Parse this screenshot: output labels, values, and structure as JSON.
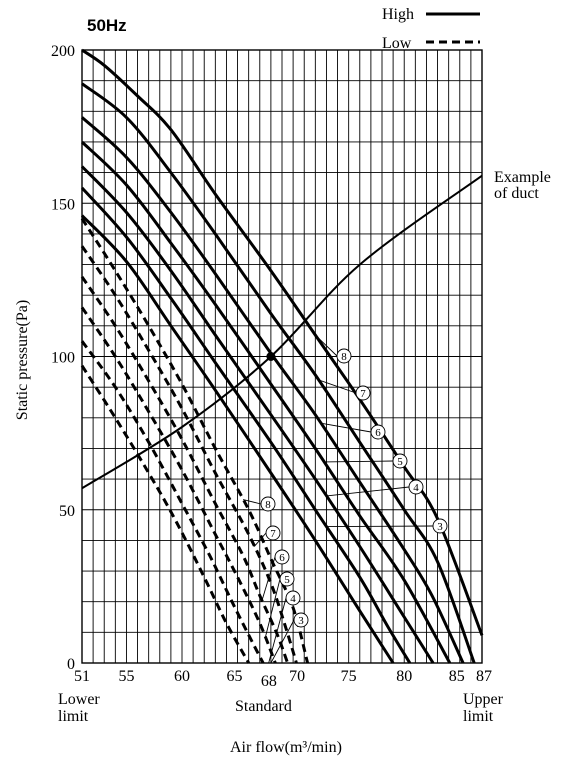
{
  "chart_data": {
    "type": "line",
    "frequency_label": "50Hz",
    "legend": {
      "high": "High",
      "low": "Low"
    },
    "xlabel": "Air flow(m³/min)",
    "ylabel": "Static pressure(Pa)",
    "xlim": [
      51,
      87
    ],
    "ylim": [
      0,
      200
    ],
    "x_ticks": [
      "51",
      "55",
      "60",
      "65",
      "68",
      "70",
      "75",
      "80",
      "85",
      "87"
    ],
    "y_ticks": [
      "0",
      "50",
      "100",
      "150",
      "200"
    ],
    "x_annotations": {
      "lower": [
        "Lower",
        "limit"
      ],
      "standard": "Standard",
      "upper": [
        "Upper",
        "limit"
      ]
    },
    "duct": {
      "label": [
        "Example",
        "of duct"
      ],
      "points": [
        [
          51,
          57
        ],
        [
          60,
          77
        ],
        [
          68,
          100
        ],
        [
          76,
          130
        ],
        [
          87,
          159
        ]
      ]
    },
    "operating_point": [
      68,
      100
    ],
    "series": [
      {
        "group": "High",
        "tap": "8",
        "points": [
          [
            51,
            200
          ],
          [
            53,
            195
          ],
          [
            56,
            185
          ],
          [
            59,
            174
          ],
          [
            63,
            153
          ],
          [
            68,
            128
          ],
          [
            72,
            107
          ],
          [
            76,
            86
          ],
          [
            80,
            64
          ],
          [
            83,
            47
          ],
          [
            87,
            9
          ]
        ]
      },
      {
        "group": "High",
        "tap": "7",
        "points": [
          [
            51,
            189
          ],
          [
            55,
            178
          ],
          [
            59,
            160
          ],
          [
            63,
            140
          ],
          [
            68,
            114
          ],
          [
            72,
            94
          ],
          [
            76,
            72
          ],
          [
            80,
            50
          ],
          [
            83,
            33
          ],
          [
            86.3,
            0
          ]
        ]
      },
      {
        "group": "High",
        "tap": "6",
        "points": [
          [
            51,
            178
          ],
          [
            55,
            165
          ],
          [
            59,
            147
          ],
          [
            63,
            127
          ],
          [
            68,
            101
          ],
          [
            72,
            81
          ],
          [
            76,
            59
          ],
          [
            80,
            37
          ],
          [
            82.5,
            22
          ],
          [
            85.3,
            0
          ]
        ]
      },
      {
        "group": "High",
        "tap": "5",
        "points": [
          [
            51,
            170
          ],
          [
            55,
            156
          ],
          [
            59,
            137
          ],
          [
            63,
            117
          ],
          [
            68,
            91
          ],
          [
            72,
            70
          ],
          [
            76,
            48
          ],
          [
            80,
            27
          ],
          [
            84.1,
            0
          ]
        ]
      },
      {
        "group": "High",
        "tap": "4",
        "points": [
          [
            51,
            162
          ],
          [
            55,
            147
          ],
          [
            59,
            128
          ],
          [
            63,
            107
          ],
          [
            68,
            81
          ],
          [
            72,
            60
          ],
          [
            76,
            38
          ],
          [
            80,
            15
          ],
          [
            82.6,
            0
          ]
        ]
      },
      {
        "group": "High",
        "tap": "3",
        "points": [
          [
            51,
            155
          ],
          [
            55,
            139
          ],
          [
            59,
            119
          ],
          [
            63,
            98
          ],
          [
            68,
            72
          ],
          [
            72,
            50
          ],
          [
            76,
            28
          ],
          [
            78.5,
            12
          ],
          [
            80.5,
            0
          ]
        ]
      },
      {
        "group": "High",
        "tap": "unlabeled",
        "points": [
          [
            51,
            146
          ],
          [
            55,
            131
          ],
          [
            59,
            110
          ],
          [
            63,
            89
          ],
          [
            68,
            62
          ],
          [
            72,
            40
          ],
          [
            76,
            17
          ],
          [
            79,
            0
          ]
        ]
      },
      {
        "group": "Low",
        "tap": "8",
        "points": [
          [
            51,
            145
          ],
          [
            54,
            128
          ],
          [
            57,
            110
          ],
          [
            60,
            91
          ],
          [
            63,
            70
          ],
          [
            66,
            50
          ],
          [
            68,
            34
          ],
          [
            70,
            18
          ],
          [
            71.3,
            0
          ]
        ]
      },
      {
        "group": "Low",
        "tap": "7",
        "points": [
          [
            51,
            136
          ],
          [
            54,
            120
          ],
          [
            57,
            102
          ],
          [
            60,
            83
          ],
          [
            63,
            62
          ],
          [
            66,
            42
          ],
          [
            68,
            26
          ],
          [
            69.3,
            12
          ],
          [
            70.3,
            0
          ]
        ]
      },
      {
        "group": "Low",
        "tap": "6",
        "points": [
          [
            51,
            126
          ],
          [
            54,
            110
          ],
          [
            57,
            92
          ],
          [
            60,
            73
          ],
          [
            63,
            52
          ],
          [
            65.5,
            35
          ],
          [
            67,
            22
          ],
          [
            68.5,
            10
          ],
          [
            69.5,
            0
          ]
        ]
      },
      {
        "group": "Low",
        "tap": "5",
        "points": [
          [
            51,
            116
          ],
          [
            54,
            100
          ],
          [
            57,
            82
          ],
          [
            60,
            63
          ],
          [
            63,
            42
          ],
          [
            65,
            28
          ],
          [
            67,
            13
          ],
          [
            68.4,
            0
          ]
        ]
      },
      {
        "group": "Low",
        "tap": "4",
        "points": [
          [
            51,
            105
          ],
          [
            54,
            90
          ],
          [
            57,
            72
          ],
          [
            60,
            52
          ],
          [
            62.5,
            35
          ],
          [
            64.5,
            20
          ],
          [
            66.3,
            7
          ],
          [
            67.3,
            0
          ]
        ]
      },
      {
        "group": "Low",
        "tap": "3",
        "points": [
          [
            51,
            97
          ],
          [
            54,
            80
          ],
          [
            57,
            62
          ],
          [
            59.5,
            46
          ],
          [
            62,
            28
          ],
          [
            64,
            13
          ],
          [
            66,
            0
          ]
        ]
      }
    ],
    "tap_labels": {
      "high": [
        "8",
        "7",
        "6",
        "5",
        "4",
        "3"
      ],
      "low": [
        "8",
        "7",
        "6",
        "5",
        "4",
        "3"
      ]
    }
  }
}
